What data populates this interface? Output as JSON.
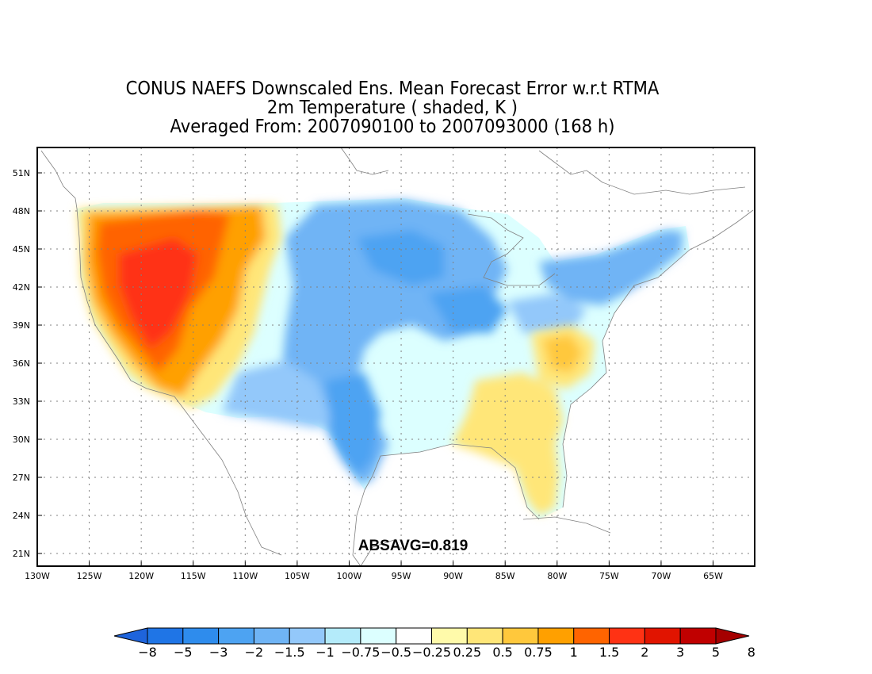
{
  "title": {
    "line1": "CONUS NAEFS Downscaled Ens. Mean Forecast Error w.r.t RTMA",
    "line2": "2m Temperature ( shaded, K )",
    "line3": "Averaged From: 2007090100 to 2007093000 (168 h)"
  },
  "annotation": "ABSAVG=0.819",
  "map": {
    "lon_range": [
      -130,
      -61
    ],
    "lat_range": [
      20,
      53
    ],
    "lon_ticks": [
      {
        "value": -130,
        "label": "130W"
      },
      {
        "value": -125,
        "label": "125W"
      },
      {
        "value": -120,
        "label": "120W"
      },
      {
        "value": -115,
        "label": "115W"
      },
      {
        "value": -110,
        "label": "110W"
      },
      {
        "value": -105,
        "label": "105W"
      },
      {
        "value": -100,
        "label": "100W"
      },
      {
        "value": -95,
        "label": "95W"
      },
      {
        "value": -90,
        "label": "90W"
      },
      {
        "value": -85,
        "label": "85W"
      },
      {
        "value": -80,
        "label": "80W"
      },
      {
        "value": -75,
        "label": "75W"
      },
      {
        "value": -70,
        "label": "70W"
      },
      {
        "value": -65,
        "label": "65W"
      }
    ],
    "lat_ticks": [
      {
        "value": 21,
        "label": "21N"
      },
      {
        "value": 24,
        "label": "24N"
      },
      {
        "value": 27,
        "label": "27N"
      },
      {
        "value": 30,
        "label": "30N"
      },
      {
        "value": 33,
        "label": "33N"
      },
      {
        "value": 36,
        "label": "36N"
      },
      {
        "value": 39,
        "label": "39N"
      },
      {
        "value": 42,
        "label": "42N"
      },
      {
        "value": 45,
        "label": "45N"
      },
      {
        "value": 48,
        "label": "48N"
      },
      {
        "value": 51,
        "label": "51N"
      }
    ],
    "grid": true
  },
  "colorbar": {
    "levels": [
      "-8",
      "-5",
      "-3",
      "-2",
      "-1.5",
      "-1",
      "-0.75",
      "-0.5",
      "-0.25",
      "0.25",
      "0.5",
      "0.75",
      "1",
      "1.5",
      "2",
      "3",
      "5",
      "8"
    ],
    "colors": [
      "#1e64dc",
      "#1f75e6",
      "#2e8ced",
      "#4da3f2",
      "#6fb4f5",
      "#93c8fa",
      "#b4ebfa",
      "#dcffff",
      "#ffffff",
      "#fffaaa",
      "#ffe678",
      "#ffc83c",
      "#ffa000",
      "#ff6400",
      "#ff3214",
      "#e11400",
      "#c00000",
      "#a50000"
    ],
    "colors_note": ""
  }
}
